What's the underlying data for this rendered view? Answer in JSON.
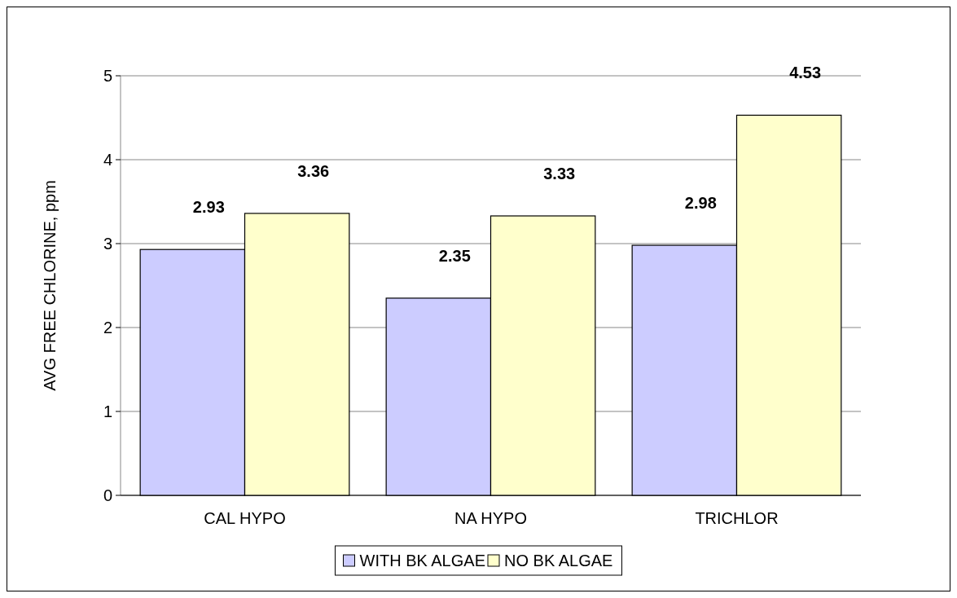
{
  "chart_data": {
    "type": "bar",
    "ylabel": "AVG FREE CHLORINE, ppm",
    "categories": [
      "CAL HYPO",
      "NA HYPO",
      "TRICHLOR"
    ],
    "series": [
      {
        "name": "WITH BK ALGAE",
        "color": "#ccccff",
        "values": [
          2.93,
          2.35,
          2.98
        ]
      },
      {
        "name": "NO BK ALGAE",
        "color": "#ffffcc",
        "values": [
          3.36,
          3.33,
          4.53
        ]
      }
    ],
    "ylim": [
      0,
      5
    ],
    "yticks": [
      0,
      1,
      2,
      3,
      4,
      5
    ],
    "grid": "y",
    "data_labels": true,
    "legend": "bottom"
  }
}
